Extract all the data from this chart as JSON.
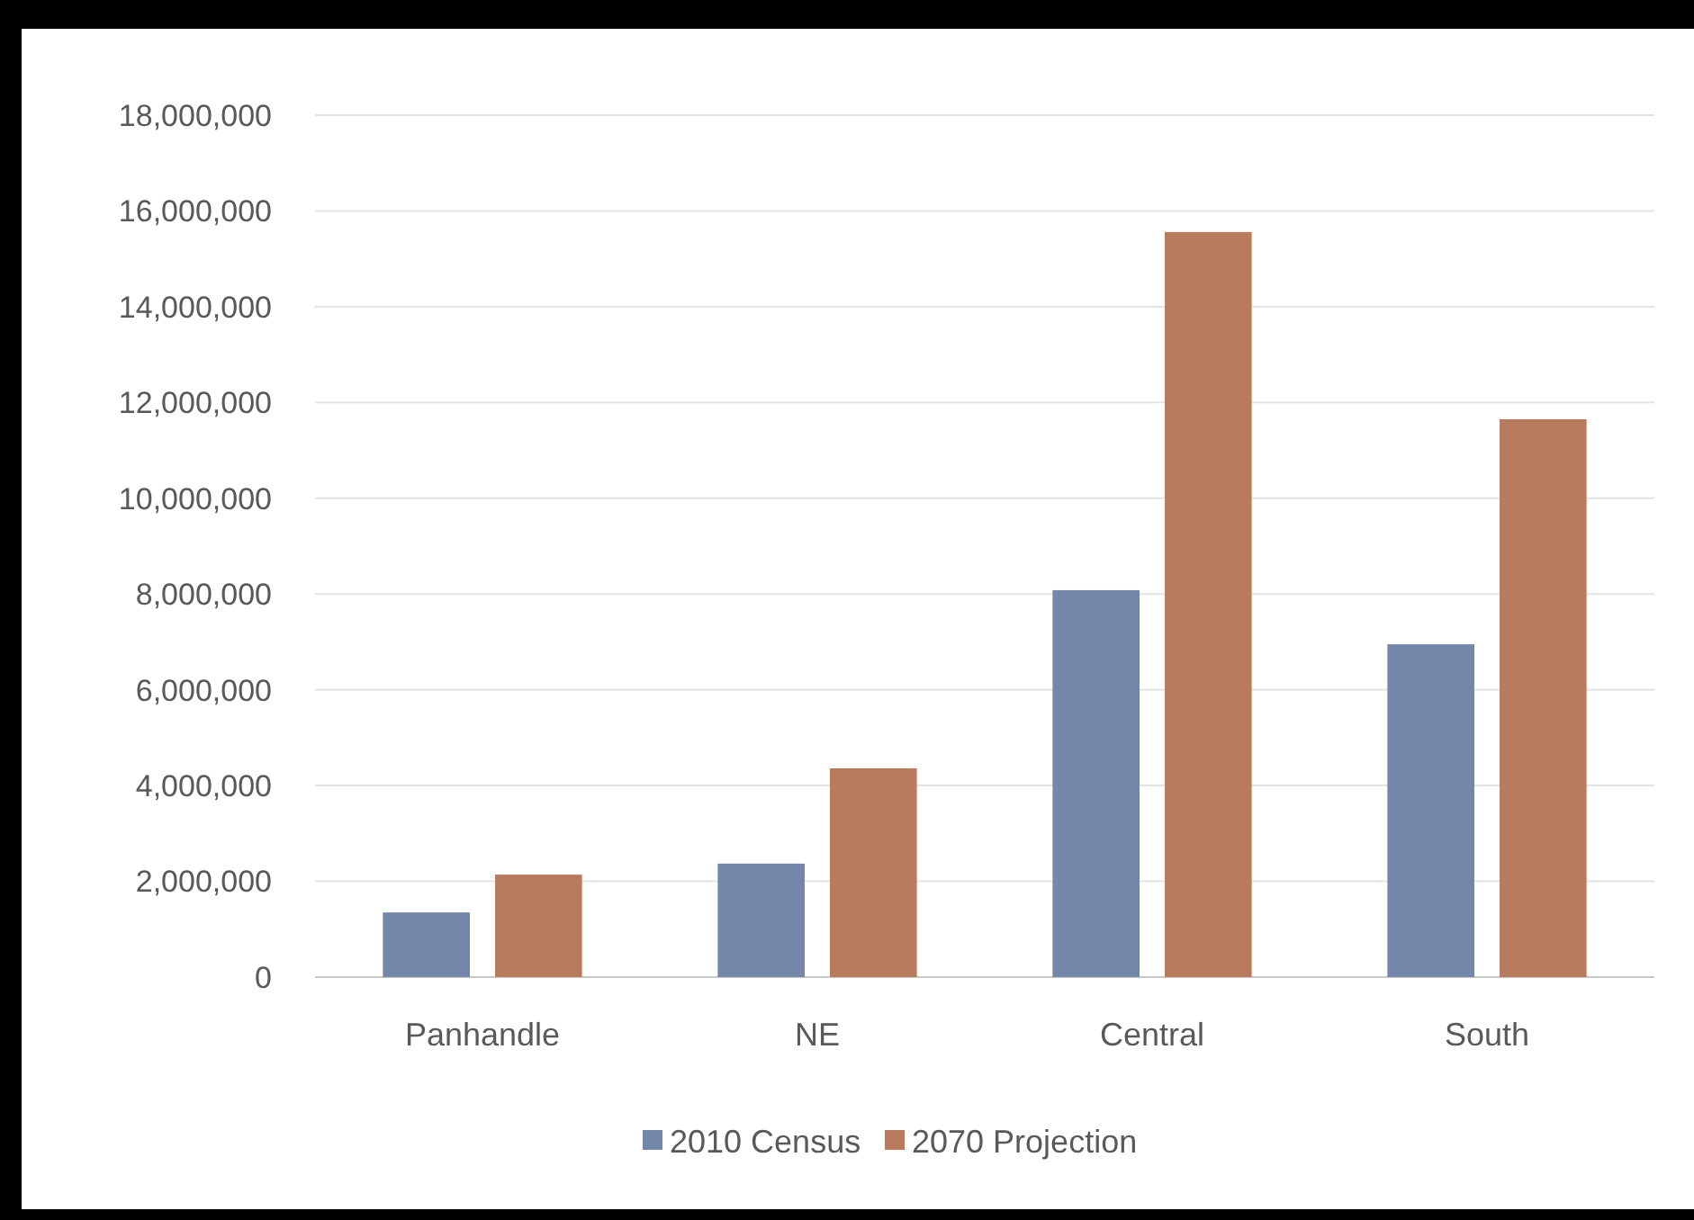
{
  "chart_data": {
    "type": "bar",
    "categories": [
      "Panhandle",
      "NE",
      "Central",
      "South"
    ],
    "series": [
      {
        "name": "2010 Census",
        "color": "#7387ab",
        "values": [
          1350000,
          2370000,
          8080000,
          6950000
        ]
      },
      {
        "name": "2070 Projection",
        "color": "#b97b5e",
        "values": [
          2140000,
          4360000,
          15560000,
          11650000
        ]
      }
    ],
    "ylim": [
      0,
      18000000
    ],
    "yticks": [
      {
        "value": 0,
        "label": "0"
      },
      {
        "value": 2000000,
        "label": "2,000,000"
      },
      {
        "value": 4000000,
        "label": "4,000,000"
      },
      {
        "value": 6000000,
        "label": "6,000,000"
      },
      {
        "value": 8000000,
        "label": "8,000,000"
      },
      {
        "value": 10000000,
        "label": "10,000,000"
      },
      {
        "value": 12000000,
        "label": "12,000,000"
      },
      {
        "value": 14000000,
        "label": "14,000,000"
      },
      {
        "value": 16000000,
        "label": "16,000,000"
      },
      {
        "value": 18000000,
        "label": "18,000,000"
      }
    ],
    "grid": "y",
    "legend": "bottom"
  }
}
